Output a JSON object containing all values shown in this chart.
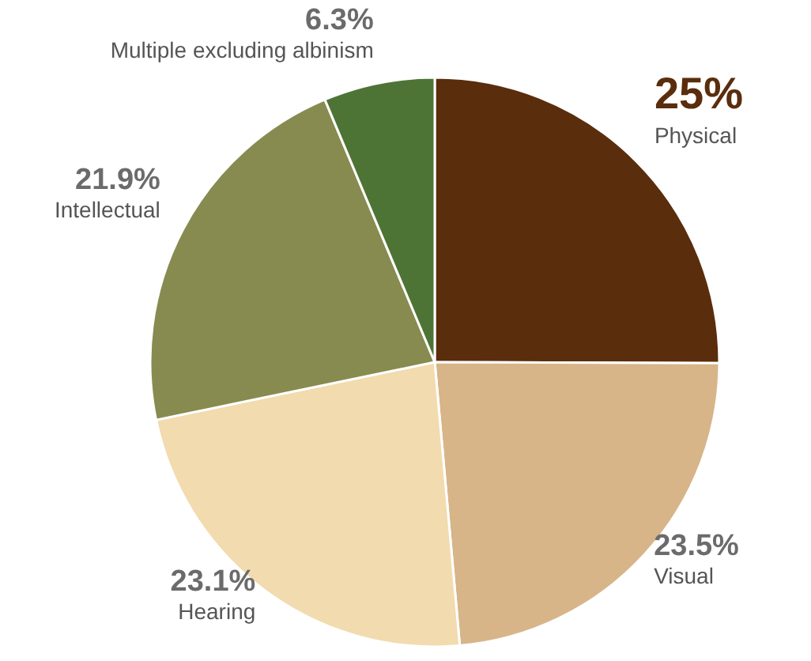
{
  "chart_data": {
    "type": "pie",
    "categories": [
      "Physical",
      "Visual",
      "Hearing",
      "Intellectual",
      "Multiple excluding albinism"
    ],
    "values": [
      25,
      23.5,
      23.1,
      21.9,
      6.3
    ],
    "colors": [
      "#5a2d0d",
      "#d7b589",
      "#f2dbae",
      "#878b4f",
      "#4e7435"
    ],
    "value_labels": [
      "25%",
      "23.5%",
      "23.1%",
      "21.9%",
      "6.3%"
    ]
  }
}
